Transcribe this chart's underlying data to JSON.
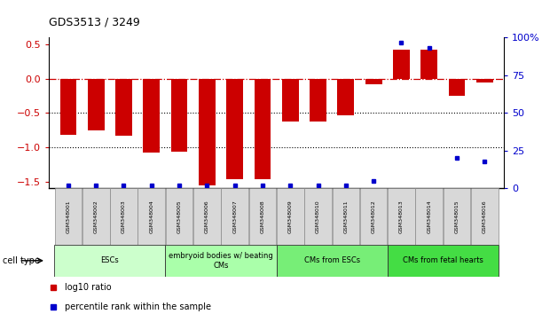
{
  "title": "GDS3513 / 3249",
  "samples": [
    "GSM348001",
    "GSM348002",
    "GSM348003",
    "GSM348004",
    "GSM348005",
    "GSM348006",
    "GSM348007",
    "GSM348008",
    "GSM348009",
    "GSM348010",
    "GSM348011",
    "GSM348012",
    "GSM348013",
    "GSM348014",
    "GSM348015",
    "GSM348016"
  ],
  "log10_ratio": [
    -0.82,
    -0.75,
    -0.83,
    -1.08,
    -1.07,
    -1.55,
    -1.47,
    -1.47,
    -0.62,
    -0.62,
    -0.53,
    -0.08,
    0.43,
    0.42,
    -0.25,
    -0.05
  ],
  "percentile_rank": [
    2,
    2,
    2,
    2,
    2,
    2,
    2,
    2,
    2,
    2,
    2,
    5,
    97,
    93,
    20,
    18
  ],
  "bar_color": "#cc0000",
  "dot_color": "#0000cc",
  "ylim_left": [
    -1.6,
    0.6
  ],
  "ylim_right": [
    0,
    100
  ],
  "yticks_left": [
    -1.5,
    -1.0,
    -0.5,
    0.0,
    0.5
  ],
  "yticks_right": [
    0,
    25,
    50,
    75,
    100
  ],
  "ytick_labels_right": [
    "0",
    "25",
    "50",
    "75",
    "100%"
  ],
  "hline_y": 0.0,
  "dotted_lines": [
    -0.5,
    -1.0
  ],
  "cell_groups": [
    {
      "label": "ESCs",
      "start": 0,
      "end": 3,
      "color": "#ccffcc"
    },
    {
      "label": "embryoid bodies w/ beating\nCMs",
      "start": 4,
      "end": 7,
      "color": "#aaffaa"
    },
    {
      "label": "CMs from ESCs",
      "start": 8,
      "end": 11,
      "color": "#77ee77"
    },
    {
      "label": "CMs from fetal hearts",
      "start": 12,
      "end": 15,
      "color": "#44dd44"
    }
  ],
  "legend_red_label": "log10 ratio",
  "legend_blue_label": "percentile rank within the sample",
  "cell_type_label": "cell type",
  "background_color": "#ffffff",
  "plot_bg": "#ffffff",
  "tick_label_color_left": "#cc0000",
  "tick_label_color_right": "#0000cc"
}
